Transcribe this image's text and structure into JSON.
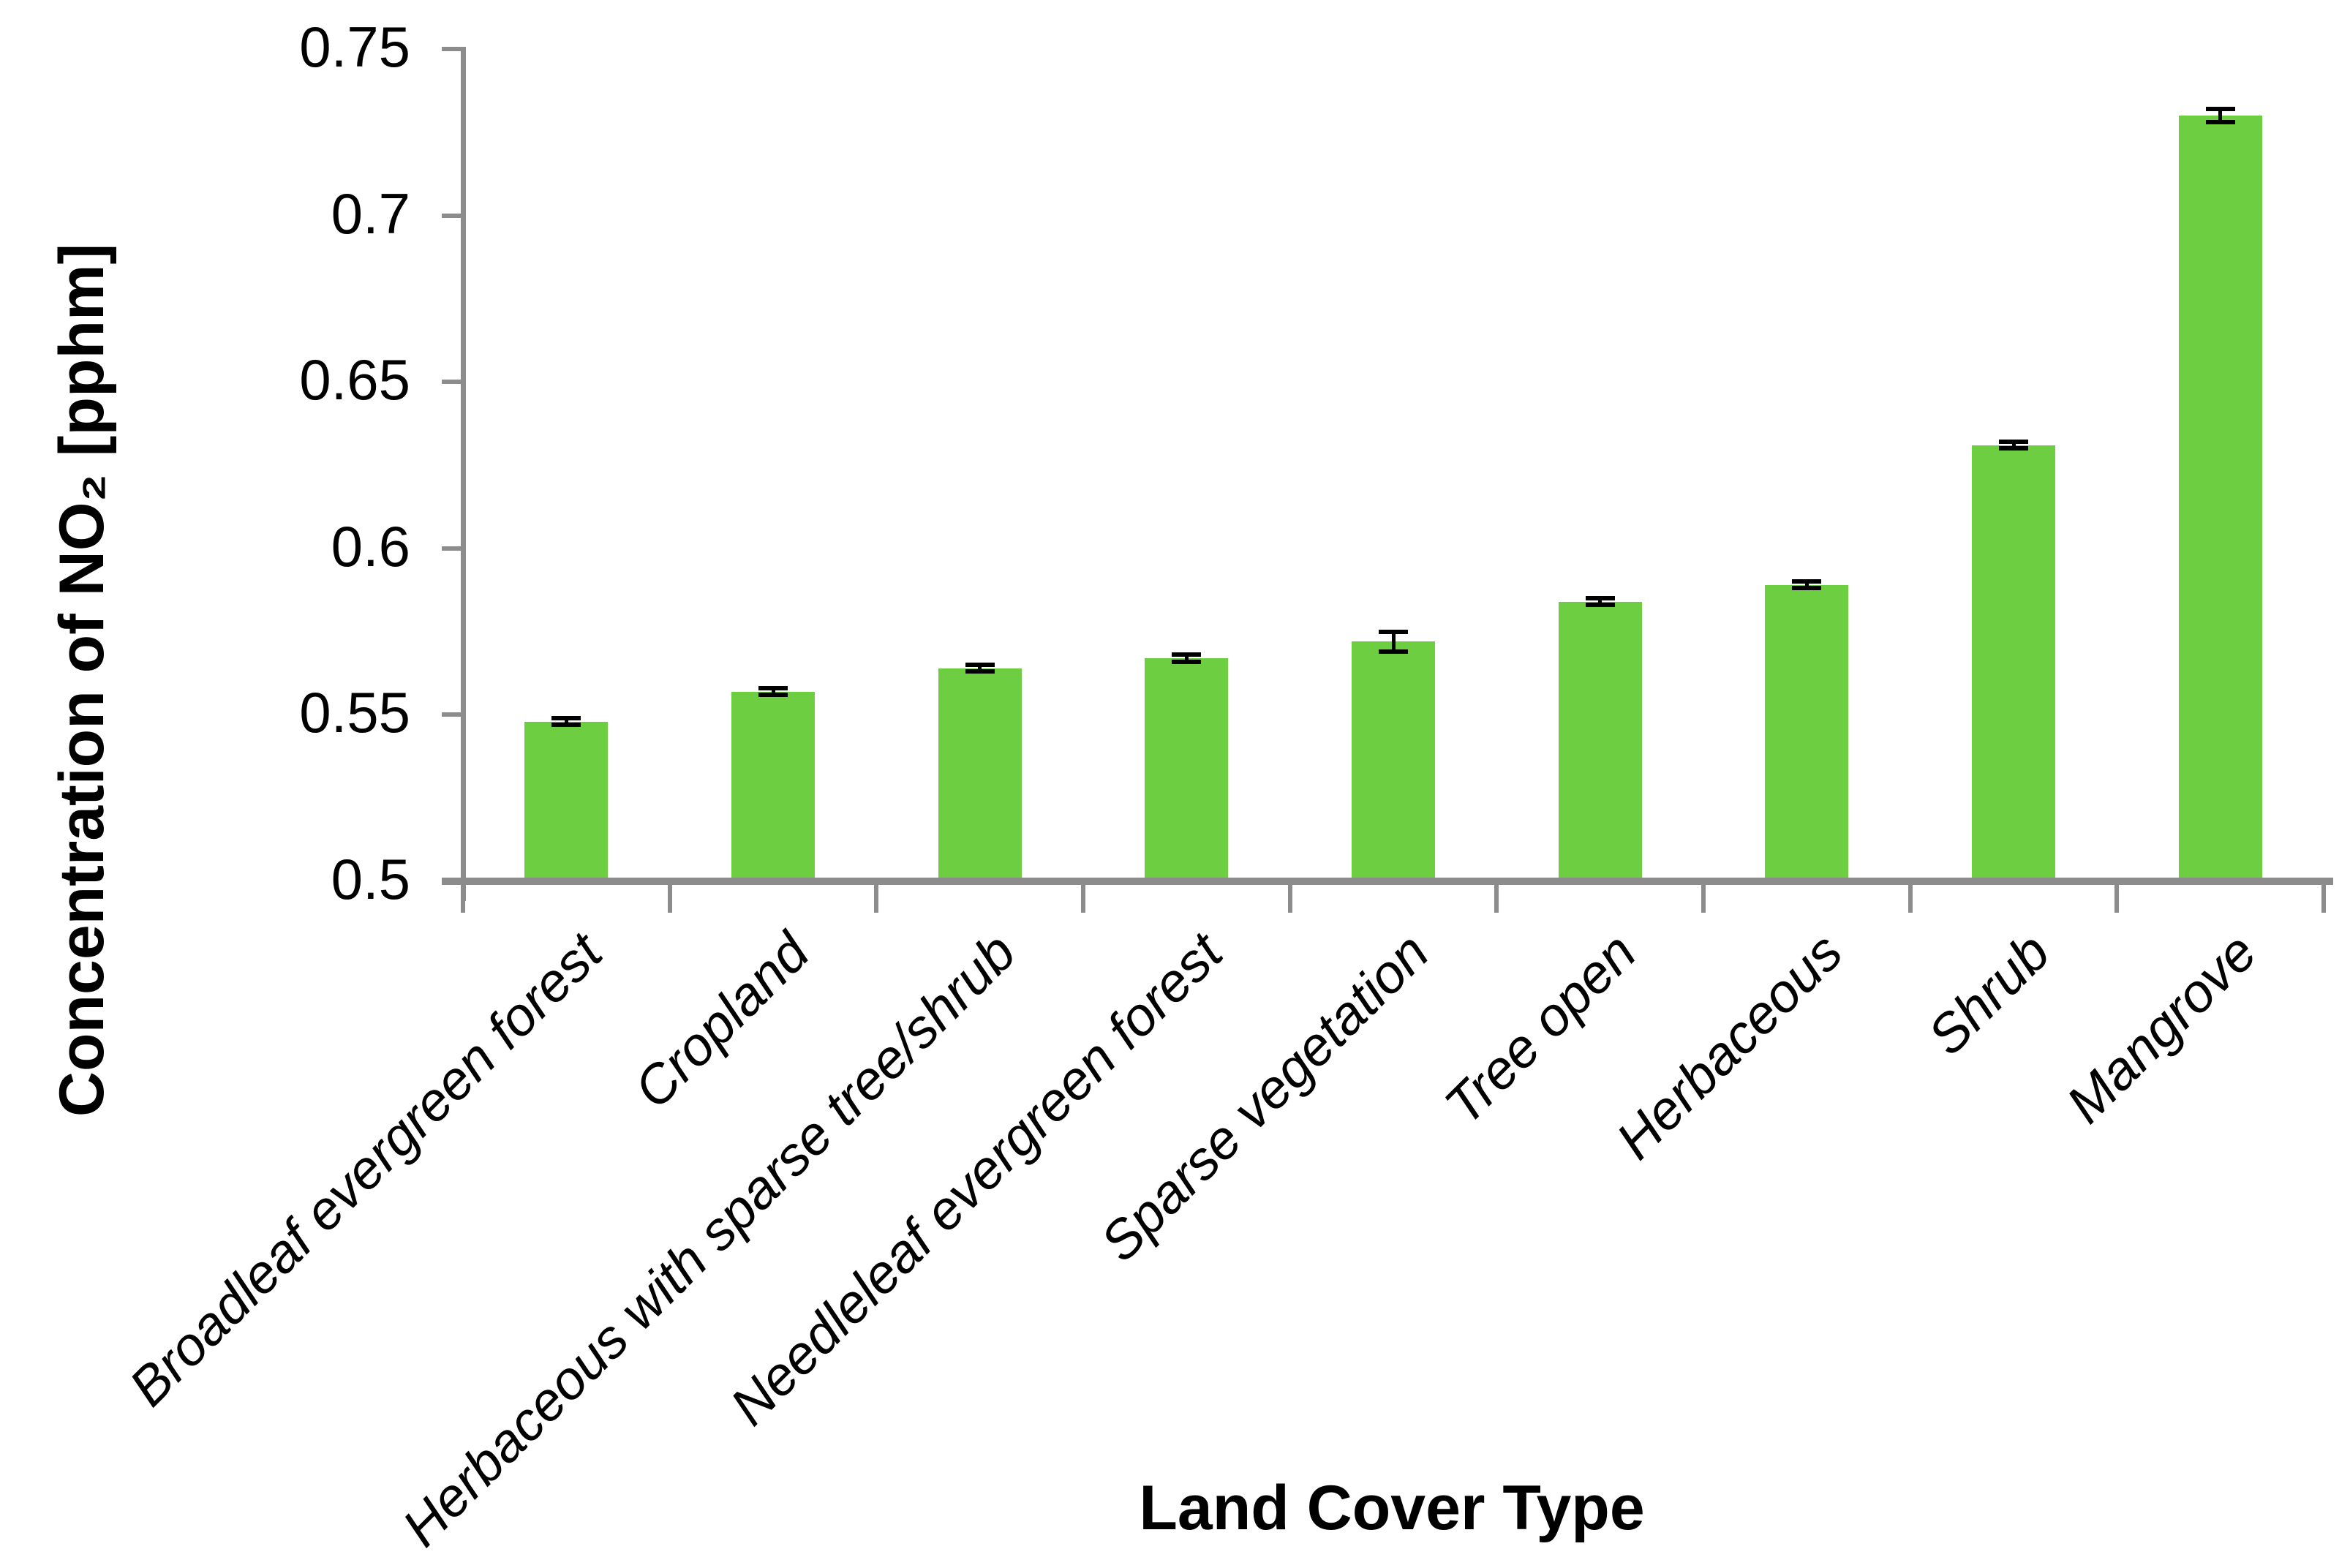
{
  "chart_data": {
    "type": "bar",
    "title": "",
    "xlabel": "Land Cover Type",
    "ylabel": "Concentration of NO₂ [pphm]",
    "categories": [
      "Broadleaf evergreen forest",
      "Cropland",
      "Herbaceous with sparse tree/shrub",
      "Needleleaf evergreen forest",
      "Sparse vegetation",
      "Tree open",
      "Herbaceous",
      "Shrub",
      "Mangrove"
    ],
    "values": [
      0.548,
      0.557,
      0.564,
      0.567,
      0.572,
      0.584,
      0.589,
      0.631,
      0.73
    ],
    "error_bars": [
      0.001,
      0.001,
      0.001,
      0.001,
      0.003,
      0.001,
      0.001,
      0.001,
      0.002
    ],
    "ylim": [
      0.5,
      0.75
    ],
    "ytick_step": 0.05,
    "ytick_labels_top_to_bottom": [
      "0.75",
      "0.7",
      "0.65",
      "0.6",
      "0.55",
      "0.5"
    ],
    "grid": false,
    "legend": null,
    "bar_color": "#6DCE41",
    "axis_color": "#8C8C8C",
    "error_bar_color": "#000000",
    "label_color": "#000000"
  }
}
